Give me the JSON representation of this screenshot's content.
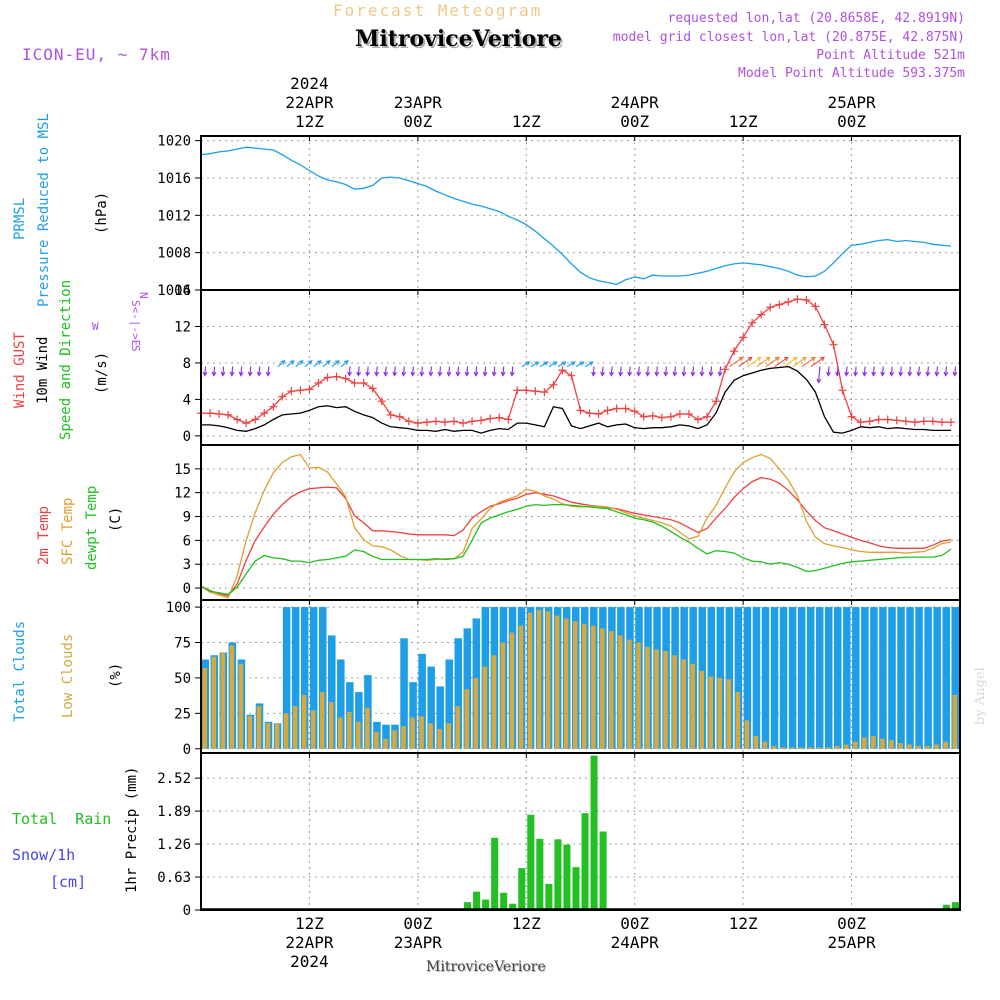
{
  "header": {
    "forecast_title": "Forecast Meteogram",
    "model": "ICON-EU, ~ 7km",
    "location": "MitroviceVeriore",
    "requested": "requested lon,lat (20.8658E, 42.8919N)",
    "closest": "model grid closest lon,lat (20.875E, 42.875N)",
    "point_altitude": "Point Altitude 521m",
    "model_altitude": "Model Point Altitude 593.375m",
    "credit": "by Angel",
    "footer_location": "MitroviceVeriore"
  },
  "time_axis": {
    "top_labels": [
      {
        "hour": 12,
        "lines": [
          "2024",
          "22APR",
          "12Z"
        ]
      },
      {
        "hour": 24,
        "lines": [
          "23APR",
          "00Z"
        ]
      },
      {
        "hour": 36,
        "lines": [
          "12Z"
        ]
      },
      {
        "hour": 48,
        "lines": [
          "24APR",
          "00Z"
        ]
      },
      {
        "hour": 60,
        "lines": [
          "12Z"
        ]
      },
      {
        "hour": 72,
        "lines": [
          "25APR",
          "00Z"
        ]
      }
    ],
    "bottom_labels": [
      {
        "hour": 12,
        "lines": [
          "12Z",
          "22APR",
          "2024"
        ]
      },
      {
        "hour": 24,
        "lines": [
          "00Z",
          "23APR"
        ]
      },
      {
        "hour": 36,
        "lines": [
          "12Z"
        ]
      },
      {
        "hour": 48,
        "lines": [
          "00Z",
          "24APR"
        ]
      },
      {
        "hour": 60,
        "lines": [
          "12Z"
        ]
      },
      {
        "hour": 72,
        "lines": [
          "00Z",
          "25APR"
        ]
      }
    ]
  },
  "colors": {
    "pressure": "#1e9ee6",
    "gust": "#f04040",
    "wind": "#000000",
    "temp2m": "#f04040",
    "sfc": "#e0a030",
    "dew": "#20c020",
    "total_clouds": "#1e9ee6",
    "low_clouds": "#d8a840",
    "rain": "#22c022",
    "snow": "#4444ee",
    "purple": "#b050e0",
    "title_orange": "#f0c888"
  },
  "chart_data": [
    {
      "id": "pressure",
      "type": "line",
      "ylabel_lines": [
        "PRMSL",
        "Pressure Reduced to MSL"
      ],
      "unit": "(hPa)",
      "ylim": [
        1004,
        1020.5
      ],
      "yticks": [
        1004,
        1008,
        1012,
        1016,
        1020
      ],
      "x_start_hour": 0,
      "x_step_hours": 1,
      "series": [
        {
          "name": "PRMSL",
          "values": [
            1018.5,
            1018.6,
            1018.8,
            1018.9,
            1019.1,
            1019.3,
            1019.2,
            1019.1,
            1019.0,
            1018.5,
            1017.9,
            1017.4,
            1016.8,
            1016.2,
            1015.8,
            1015.6,
            1015.3,
            1014.8,
            1014.9,
            1015.2,
            1016.0,
            1016.1,
            1016.0,
            1015.7,
            1015.4,
            1015.1,
            1014.6,
            1014.2,
            1013.8,
            1013.5,
            1013.2,
            1013.0,
            1012.7,
            1012.4,
            1011.9,
            1011.5,
            1011.0,
            1010.3,
            1009.5,
            1008.7,
            1007.8,
            1006.8,
            1005.9,
            1005.3,
            1005.0,
            1004.8,
            1004.6,
            1005.1,
            1005.4,
            1005.2,
            1005.6,
            1005.5,
            1005.5,
            1005.5,
            1005.6,
            1005.8,
            1006.0,
            1006.3,
            1006.6,
            1006.8,
            1006.9,
            1006.8,
            1006.7,
            1006.5,
            1006.3,
            1006.0,
            1005.6,
            1005.4,
            1005.5,
            1006.0,
            1006.9,
            1007.9,
            1008.8,
            1008.9,
            1009.1,
            1009.3,
            1009.4,
            1009.2,
            1009.3,
            1009.2,
            1009.1,
            1008.9,
            1008.8,
            1008.7
          ]
        }
      ]
    },
    {
      "id": "wind",
      "type": "line",
      "ylabel_lines": [
        "Wind GUST",
        "10m Wind",
        "Speed and Direction"
      ],
      "unit": "(m/s)",
      "compass": [
        "N",
        "S<-|->E",
        "W",
        "S"
      ],
      "ylim": [
        -1,
        16
      ],
      "yticks": [
        0,
        4,
        8,
        12,
        16
      ],
      "x_start_hour": 0,
      "x_step_hours": 1,
      "series": [
        {
          "name": "Wind GUST",
          "values": [
            2.5,
            2.5,
            2.4,
            2.3,
            1.8,
            1.4,
            1.8,
            2.5,
            3.2,
            4.3,
            4.9,
            5.0,
            5.1,
            5.8,
            6.4,
            6.5,
            6.3,
            5.8,
            5.8,
            5.2,
            3.8,
            2.3,
            2.1,
            1.6,
            1.4,
            1.5,
            1.6,
            1.5,
            1.6,
            1.4,
            1.6,
            1.7,
            1.9,
            2.0,
            1.8,
            5.0,
            5.0,
            4.9,
            4.8,
            5.6,
            7.2,
            6.6,
            2.8,
            2.5,
            2.4,
            2.8,
            3.0,
            3.0,
            2.7,
            2.1,
            2.2,
            2.0,
            2.1,
            2.4,
            2.4,
            1.8,
            2.1,
            3.8,
            7.3,
            9.3,
            10.8,
            12.4,
            13.3,
            14.1,
            14.4,
            14.7,
            15.0,
            14.9,
            14.2,
            12.2,
            10.0,
            5.0,
            2.1,
            1.5,
            1.6,
            1.8,
            1.8,
            1.7,
            1.6,
            1.5,
            1.6,
            1.6,
            1.5,
            1.5
          ]
        },
        {
          "name": "10m Wind",
          "values": [
            1.2,
            1.2,
            1.1,
            0.9,
            0.6,
            0.5,
            0.8,
            1.2,
            1.8,
            2.3,
            2.4,
            2.5,
            2.8,
            3.2,
            3.3,
            3.1,
            3.2,
            2.7,
            2.3,
            2.0,
            1.4,
            1.0,
            0.9,
            0.8,
            0.6,
            0.6,
            0.5,
            0.7,
            0.5,
            0.6,
            0.6,
            0.3,
            0.6,
            0.8,
            0.7,
            1.4,
            1.4,
            1.2,
            1.0,
            3.2,
            3.0,
            1.1,
            0.8,
            1.1,
            1.4,
            1.0,
            1.2,
            1.3,
            0.9,
            0.8,
            0.9,
            0.9,
            1.0,
            1.2,
            1.1,
            0.8,
            1.2,
            2.5,
            4.8,
            6.1,
            6.6,
            6.9,
            7.2,
            7.4,
            7.5,
            7.6,
            7.1,
            6.2,
            4.8,
            2.1,
            0.4,
            0.3,
            0.6,
            1.0,
            0.9,
            1.0,
            0.8,
            0.9,
            0.8,
            0.7,
            0.7,
            0.6,
            0.6,
            0.6
          ]
        }
      ],
      "arrows": {
        "name": "Speed and Direction",
        "y_value": 7.6
      }
    },
    {
      "id": "temperature",
      "type": "line",
      "ylabel_lines": [
        "2m Temp",
        "SFC Temp",
        "dewpt Temp"
      ],
      "unit": "(C)",
      "ylim": [
        -1.5,
        18
      ],
      "yticks": [
        0,
        3,
        6,
        9,
        12,
        15
      ],
      "x_start_hour": 0,
      "x_step_hours": 1,
      "series": [
        {
          "name": "2m Temp",
          "values": [
            0.2,
            -0.3,
            -0.7,
            -1.0,
            0.5,
            3.5,
            6.0,
            7.7,
            9.3,
            10.5,
            11.5,
            12.1,
            12.5,
            12.6,
            12.7,
            12.6,
            11.3,
            9.1,
            8.2,
            7.2,
            7.2,
            7.1,
            7.0,
            6.8,
            6.7,
            6.7,
            6.7,
            6.7,
            6.6,
            7.3,
            8.8,
            9.6,
            10.3,
            10.6,
            11.0,
            11.3,
            11.8,
            12.0,
            11.8,
            11.6,
            11.2,
            10.8,
            10.6,
            10.4,
            10.3,
            10.1,
            10.0,
            9.7,
            9.4,
            9.2,
            9.0,
            8.8,
            8.6,
            8.2,
            7.6,
            7.0,
            7.5,
            8.8,
            10.0,
            11.4,
            12.5,
            13.4,
            13.9,
            13.7,
            13.2,
            12.3,
            11.1,
            9.7,
            8.5,
            7.6,
            7.2,
            6.8,
            6.4,
            6.0,
            5.7,
            5.3,
            5.1,
            5.0,
            5.0,
            5.0,
            5.0,
            5.4,
            5.9,
            6.1
          ]
        },
        {
          "name": "SFC Temp",
          "values": [
            0.2,
            -0.5,
            -0.9,
            -1.2,
            1.5,
            6.0,
            9.5,
            12.3,
            14.5,
            15.8,
            16.5,
            16.8,
            15.1,
            15.2,
            14.6,
            13.1,
            11.5,
            7.6,
            6.1,
            5.3,
            5.2,
            4.8,
            4.1,
            3.6,
            3.6,
            3.5,
            3.6,
            3.7,
            3.7,
            4.5,
            7.5,
            8.7,
            10.0,
            10.8,
            11.2,
            11.6,
            12.4,
            12.2,
            11.6,
            11.2,
            10.6,
            10.3,
            10.2,
            10.3,
            10.3,
            10.2,
            9.9,
            9.5,
            9.1,
            8.8,
            8.5,
            8.2,
            7.8,
            7.0,
            6.2,
            6.5,
            8.8,
            10.4,
            12.6,
            14.6,
            15.8,
            16.4,
            16.8,
            16.3,
            15.0,
            13.6,
            11.6,
            8.4,
            6.4,
            5.6,
            5.3,
            5.1,
            4.8,
            4.6,
            4.5,
            4.5,
            4.5,
            4.5,
            4.4,
            4.5,
            4.6,
            5.0,
            5.6,
            5.8
          ]
        },
        {
          "name": "dewpt Temp",
          "values": [
            0.3,
            -0.4,
            -0.6,
            -0.8,
            0.1,
            1.8,
            3.4,
            4.1,
            3.8,
            3.7,
            3.4,
            3.4,
            3.2,
            3.5,
            3.6,
            3.8,
            4.0,
            4.8,
            4.6,
            4.0,
            3.6,
            3.6,
            3.6,
            3.6,
            3.6,
            3.6,
            3.7,
            3.6,
            3.7,
            4.0,
            6.0,
            8.2,
            8.8,
            9.2,
            9.6,
            9.9,
            10.3,
            10.5,
            10.4,
            10.5,
            10.5,
            10.4,
            10.3,
            10.2,
            10.1,
            10.0,
            9.6,
            9.2,
            8.8,
            8.6,
            8.3,
            7.8,
            7.1,
            6.4,
            5.8,
            5.0,
            4.3,
            4.7,
            4.6,
            4.4,
            3.8,
            3.4,
            3.3,
            3.0,
            3.2,
            3.0,
            2.6,
            2.1,
            2.2,
            2.5,
            2.8,
            3.1,
            3.3,
            3.4,
            3.5,
            3.6,
            3.7,
            3.8,
            3.9,
            3.9,
            3.9,
            3.9,
            4.1,
            4.9
          ]
        }
      ]
    },
    {
      "id": "clouds",
      "type": "bar",
      "ylabel_lines": [
        "Total Clouds",
        "Low Clouds"
      ],
      "unit": "(%)",
      "ylim": [
        -3,
        105
      ],
      "yticks": [
        0,
        25,
        50,
        75,
        100
      ],
      "x_start_hour": 0,
      "x_step_hours": 1,
      "series": [
        {
          "name": "Total Clouds",
          "values": [
            63,
            66,
            68,
            75,
            63,
            24,
            32,
            19,
            18,
            100,
            100,
            100,
            100,
            100,
            80,
            63,
            47,
            40,
            52,
            19,
            17,
            17,
            78,
            47,
            67,
            58,
            44,
            63,
            78,
            85,
            92,
            100,
            100,
            100,
            100,
            100,
            100,
            100,
            100,
            100,
            100,
            100,
            100,
            100,
            100,
            100,
            100,
            100,
            100,
            100,
            100,
            100,
            100,
            100,
            100,
            100,
            100,
            100,
            100,
            100,
            100,
            100,
            100,
            100,
            100,
            100,
            100,
            100,
            100,
            100,
            100,
            100,
            100,
            100,
            100,
            100,
            100,
            100,
            100,
            100,
            100,
            100,
            100,
            100
          ]
        },
        {
          "name": "Low Clouds",
          "values": [
            57,
            65,
            68,
            73,
            60,
            23,
            30,
            18,
            18,
            25,
            30,
            38,
            27,
            40,
            33,
            22,
            26,
            19,
            29,
            12,
            7,
            13,
            16,
            22,
            23,
            18,
            14,
            18,
            30,
            42,
            50,
            58,
            66,
            75,
            82,
            87,
            96,
            98,
            97,
            94,
            92,
            90,
            88,
            87,
            85,
            83,
            80,
            77,
            75,
            72,
            70,
            69,
            66,
            63,
            60,
            55,
            51,
            50,
            49,
            40,
            20,
            9,
            5,
            2,
            1,
            1,
            1,
            1,
            1,
            1,
            2,
            3,
            5,
            8,
            9,
            7,
            6,
            4,
            3,
            2,
            2,
            3,
            5,
            38
          ]
        }
      ]
    },
    {
      "id": "precip",
      "type": "bar",
      "ylabel_lines": [
        "1hr Precip (mm)"
      ],
      "legend_lines": [
        "Total  Rain",
        "Snow/1h",
        "[cm]"
      ],
      "ylim": [
        0,
        3.0
      ],
      "yticks": [
        0,
        0.63,
        1.26,
        1.89,
        2.52
      ],
      "ytick_labels": [
        "0",
        "0.63",
        "1.26",
        "1.89",
        "2.52"
      ],
      "x_start_hour": 0,
      "x_step_hours": 1,
      "series": [
        {
          "name": "Total Rain",
          "values": [
            0,
            0,
            0,
            0,
            0,
            0,
            0,
            0,
            0,
            0,
            0,
            0,
            0,
            0,
            0,
            0,
            0,
            0,
            0,
            0,
            0,
            0,
            0,
            0,
            0,
            0,
            0,
            0,
            0,
            0.15,
            0.35,
            0.2,
            1.38,
            0.33,
            0.12,
            0.8,
            1.82,
            1.36,
            0.5,
            1.35,
            1.25,
            0.82,
            1.85,
            2.95,
            1.5,
            0,
            0,
            0,
            0,
            0.01,
            0.01,
            0,
            0,
            0,
            0,
            0,
            0,
            0,
            0,
            0,
            0,
            0,
            0,
            0,
            0,
            0,
            0,
            0,
            0,
            0,
            0,
            0,
            0,
            0,
            0,
            0,
            0,
            0,
            0,
            0,
            0,
            0,
            0.1,
            0.15
          ]
        },
        {
          "name": "Snow/1h",
          "values": []
        }
      ]
    }
  ]
}
